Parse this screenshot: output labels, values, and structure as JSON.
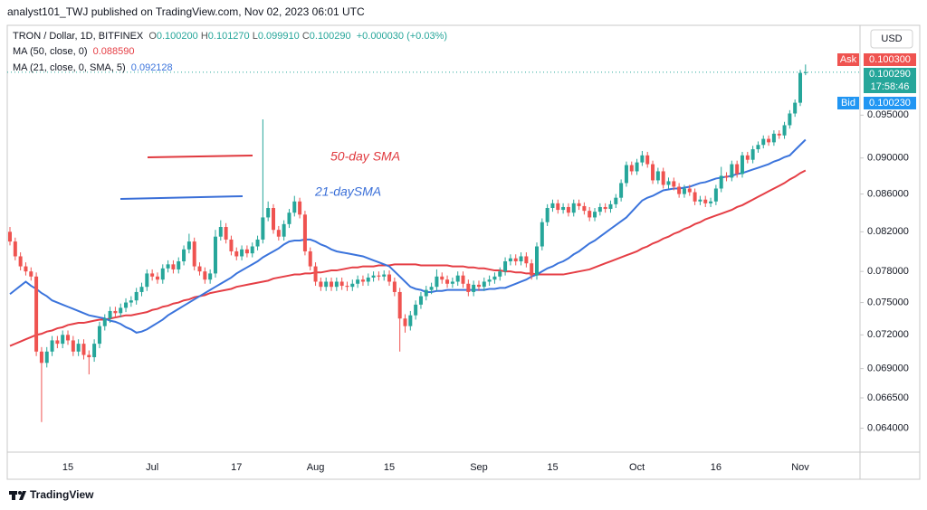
{
  "header": "analyst101_TWJ published on TradingView.com, Nov 02, 2023 06:01 UTC",
  "footer": "TradingView",
  "currency": "USD",
  "price_scale": {
    "ask_label": "Ask",
    "ask": "0.100300",
    "last": "0.100290",
    "countdown": "17:58:46",
    "bid_label": "Bid",
    "bid": "0.100230"
  },
  "chart_data": {
    "type": "candlestick",
    "title": "TRON / Dollar, 1D, BITFINEX",
    "ohlc_legend": [
      {
        "label": "O",
        "value": "0.100200"
      },
      {
        "label": "H",
        "value": "0.101270"
      },
      {
        "label": "L",
        "value": "0.099910"
      },
      {
        "label": "C",
        "value": "0.100290"
      }
    ],
    "change": "+0.000030 (+0.03%)",
    "up_color": "#26a69a",
    "down_color": "#ef5350",
    "log": true,
    "grid": false,
    "ylim": [
      0.0621,
      0.1064
    ],
    "yticks": [
      {
        "value": 0.064,
        "label": "0.064000"
      },
      {
        "value": 0.0665,
        "label": "0.066500"
      },
      {
        "value": 0.069,
        "label": "0.069000"
      },
      {
        "value": 0.072,
        "label": "0.072000"
      },
      {
        "value": 0.075,
        "label": "0.075000"
      },
      {
        "value": 0.078,
        "label": "0.078000"
      },
      {
        "value": 0.082,
        "label": "0.082000"
      },
      {
        "value": 0.086,
        "label": "0.086000"
      },
      {
        "value": 0.09,
        "label": "0.090000"
      },
      {
        "value": 0.095,
        "label": "0.095000"
      }
    ],
    "annotations": [
      {
        "text": "50-day SMA",
        "color": "#e0393e"
      },
      {
        "text": "21-daySMA",
        "color": "#3a6fd8"
      }
    ],
    "categories": [
      null,
      null,
      null,
      null,
      null,
      null,
      null,
      null,
      null,
      null,
      null,
      "15",
      null,
      null,
      null,
      null,
      null,
      null,
      null,
      null,
      null,
      null,
      null,
      null,
      null,
      null,
      null,
      "Jul",
      null,
      null,
      null,
      null,
      null,
      null,
      null,
      null,
      null,
      null,
      null,
      null,
      null,
      null,
      null,
      "17",
      null,
      null,
      null,
      null,
      null,
      null,
      null,
      null,
      null,
      null,
      null,
      null,
      null,
      null,
      "Aug",
      null,
      null,
      null,
      null,
      null,
      null,
      null,
      null,
      null,
      null,
      null,
      null,
      null,
      "15",
      null,
      null,
      null,
      null,
      null,
      null,
      null,
      null,
      null,
      null,
      null,
      null,
      null,
      null,
      null,
      null,
      "Sep",
      null,
      null,
      null,
      null,
      null,
      null,
      null,
      null,
      null,
      null,
      null,
      null,
      null,
      "15",
      null,
      null,
      null,
      null,
      null,
      null,
      null,
      null,
      null,
      null,
      null,
      null,
      null,
      null,
      null,
      "Oct",
      null,
      null,
      null,
      null,
      null,
      null,
      null,
      null,
      null,
      null,
      null,
      null,
      null,
      null,
      "16",
      null,
      null,
      null,
      null,
      null,
      null,
      null,
      null,
      null,
      null,
      null,
      null,
      null,
      null,
      null,
      "Nov",
      null
    ],
    "open": [
      0.082,
      0.081,
      0.0795,
      0.0785,
      0.078,
      0.0775,
      0.0705,
      0.0695,
      0.0705,
      0.0715,
      0.0712,
      0.072,
      0.0715,
      0.0705,
      0.0712,
      0.0702,
      0.07,
      0.0712,
      0.0728,
      0.0735,
      0.0742,
      0.074,
      0.0745,
      0.075,
      0.0752,
      0.076,
      0.0765,
      0.0778,
      0.0775,
      0.0772,
      0.0783,
      0.0787,
      0.0782,
      0.079,
      0.0802,
      0.081,
      0.0785,
      0.078,
      0.0772,
      0.0778,
      0.0815,
      0.0825,
      0.0812,
      0.08,
      0.0795,
      0.0802,
      0.0798,
      0.0805,
      0.0812,
      0.0835,
      0.0845,
      0.0822,
      0.0815,
      0.0828,
      0.084,
      0.0852,
      0.0838,
      0.08,
      0.0785,
      0.077,
      0.0765,
      0.077,
      0.0765,
      0.077,
      0.0766,
      0.0765,
      0.0768,
      0.0772,
      0.077,
      0.0774,
      0.0776,
      0.0775,
      0.0777,
      0.077,
      0.076,
      0.0735,
      0.0728,
      0.0738,
      0.0748,
      0.0756,
      0.0762,
      0.0765,
      0.0775,
      0.0772,
      0.0768,
      0.077,
      0.0776,
      0.0768,
      0.076,
      0.0767,
      0.0765,
      0.077,
      0.0772,
      0.0775,
      0.078,
      0.079,
      0.0793,
      0.079,
      0.0795,
      0.0788,
      0.0776,
      0.0805,
      0.083,
      0.0845,
      0.085,
      0.0843,
      0.0846,
      0.084,
      0.085,
      0.0847,
      0.0842,
      0.0835,
      0.0841,
      0.0846,
      0.0844,
      0.0849,
      0.0856,
      0.0872,
      0.0892,
      0.0885,
      0.0895,
      0.0903,
      0.0893,
      0.0875,
      0.0885,
      0.087,
      0.0874,
      0.0868,
      0.086,
      0.0866,
      0.0862,
      0.0852,
      0.0854,
      0.085,
      0.0852,
      0.0866,
      0.088,
      0.0878,
      0.0893,
      0.0882,
      0.0903,
      0.0898,
      0.091,
      0.0915,
      0.0922,
      0.0918,
      0.0928,
      0.0926,
      0.0938,
      0.0952,
      0.0965,
      0.1002
    ],
    "high": [
      0.0825,
      0.0814,
      0.0799,
      0.0789,
      0.0784,
      0.0779,
      0.0709,
      0.0709,
      0.0719,
      0.0719,
      0.0724,
      0.0724,
      0.0719,
      0.0716,
      0.0716,
      0.0706,
      0.0716,
      0.0732,
      0.0739,
      0.0746,
      0.0746,
      0.0749,
      0.0754,
      0.0756,
      0.0764,
      0.0769,
      0.0782,
      0.0782,
      0.0779,
      0.0787,
      0.0791,
      0.0791,
      0.0794,
      0.0806,
      0.0818,
      0.0814,
      0.0789,
      0.0784,
      0.0782,
      0.0822,
      0.0832,
      0.0829,
      0.0816,
      0.0804,
      0.0806,
      0.0806,
      0.0809,
      0.0816,
      0.0945,
      0.0852,
      0.0849,
      0.0826,
      0.0832,
      0.0844,
      0.0858,
      0.0856,
      0.0842,
      0.0804,
      0.0789,
      0.0774,
      0.0774,
      0.0774,
      0.0774,
      0.0774,
      0.077,
      0.0772,
      0.0776,
      0.0776,
      0.0778,
      0.078,
      0.078,
      0.0781,
      0.0781,
      0.0774,
      0.0764,
      0.0739,
      0.0742,
      0.0752,
      0.076,
      0.0766,
      0.0769,
      0.0782,
      0.0779,
      0.0776,
      0.0774,
      0.078,
      0.078,
      0.0772,
      0.0771,
      0.0771,
      0.0774,
      0.0776,
      0.0779,
      0.0784,
      0.0794,
      0.0797,
      0.0797,
      0.0799,
      0.0799,
      0.0792,
      0.0809,
      0.0834,
      0.0849,
      0.0854,
      0.0854,
      0.085,
      0.085,
      0.0854,
      0.0854,
      0.0851,
      0.0846,
      0.0845,
      0.085,
      0.085,
      0.0853,
      0.086,
      0.0876,
      0.0896,
      0.0896,
      0.0899,
      0.0908,
      0.0907,
      0.0897,
      0.0889,
      0.0889,
      0.0878,
      0.0878,
      0.0872,
      0.087,
      0.087,
      0.0866,
      0.0858,
      0.0858,
      0.0856,
      0.087,
      0.089,
      0.0884,
      0.0897,
      0.0897,
      0.0907,
      0.0907,
      0.0914,
      0.0919,
      0.0926,
      0.0926,
      0.0932,
      0.0932,
      0.0942,
      0.0956,
      0.0969,
      0.1006,
      0.10127
    ],
    "low": [
      0.0806,
      0.0791,
      0.0781,
      0.0776,
      0.0771,
      0.0701,
      0.0645,
      0.0691,
      0.0701,
      0.0708,
      0.0708,
      0.0711,
      0.0701,
      0.0701,
      0.0698,
      0.0685,
      0.0696,
      0.0708,
      0.0724,
      0.0731,
      0.0736,
      0.0736,
      0.0741,
      0.0746,
      0.0748,
      0.0756,
      0.0761,
      0.0771,
      0.0768,
      0.0768,
      0.0779,
      0.0778,
      0.0778,
      0.0786,
      0.0798,
      0.0781,
      0.0776,
      0.0768,
      0.0768,
      0.0774,
      0.0811,
      0.0808,
      0.0796,
      0.0791,
      0.0791,
      0.0794,
      0.0794,
      0.0801,
      0.0808,
      0.0831,
      0.0818,
      0.0811,
      0.0811,
      0.0824,
      0.0836,
      0.0834,
      0.0796,
      0.0781,
      0.0766,
      0.0761,
      0.0761,
      0.0761,
      0.0761,
      0.0762,
      0.0761,
      0.0761,
      0.0764,
      0.0766,
      0.0766,
      0.077,
      0.0771,
      0.0771,
      0.0766,
      0.0756,
      0.0705,
      0.0722,
      0.0724,
      0.0734,
      0.0744,
      0.0752,
      0.0758,
      0.0761,
      0.0768,
      0.0764,
      0.0764,
      0.0766,
      0.0764,
      0.0756,
      0.0756,
      0.0761,
      0.0761,
      0.0766,
      0.0768,
      0.0771,
      0.0776,
      0.0786,
      0.0786,
      0.0786,
      0.0784,
      0.0772,
      0.0772,
      0.0801,
      0.0826,
      0.0841,
      0.0839,
      0.0839,
      0.0836,
      0.0836,
      0.0843,
      0.0838,
      0.0831,
      0.0831,
      0.0837,
      0.084,
      0.084,
      0.0845,
      0.0852,
      0.0868,
      0.0881,
      0.0881,
      0.0891,
      0.0889,
      0.0871,
      0.0871,
      0.0866,
      0.0866,
      0.0864,
      0.0856,
      0.0856,
      0.0858,
      0.0848,
      0.0848,
      0.0846,
      0.0846,
      0.0848,
      0.0862,
      0.0874,
      0.0874,
      0.0878,
      0.0878,
      0.0894,
      0.0894,
      0.0906,
      0.0911,
      0.0914,
      0.0914,
      0.0922,
      0.0922,
      0.0934,
      0.0948,
      0.0961,
      0.09991
    ],
    "close": [
      0.081,
      0.0795,
      0.0785,
      0.078,
      0.0775,
      0.0705,
      0.0695,
      0.0705,
      0.0715,
      0.0712,
      0.072,
      0.0715,
      0.0705,
      0.0712,
      0.0702,
      0.07,
      0.0712,
      0.0728,
      0.0735,
      0.0742,
      0.074,
      0.0745,
      0.075,
      0.0752,
      0.076,
      0.0765,
      0.0778,
      0.0775,
      0.0772,
      0.0783,
      0.0787,
      0.0782,
      0.079,
      0.0802,
      0.081,
      0.0785,
      0.078,
      0.0772,
      0.0778,
      0.0815,
      0.0825,
      0.0812,
      0.08,
      0.0795,
      0.0802,
      0.0798,
      0.0805,
      0.0812,
      0.0835,
      0.0845,
      0.0822,
      0.0815,
      0.0828,
      0.084,
      0.0852,
      0.0838,
      0.08,
      0.0785,
      0.077,
      0.0765,
      0.077,
      0.0765,
      0.077,
      0.0766,
      0.0765,
      0.0768,
      0.0772,
      0.077,
      0.0774,
      0.0776,
      0.0775,
      0.0777,
      0.077,
      0.076,
      0.0735,
      0.0728,
      0.0738,
      0.0748,
      0.0756,
      0.0762,
      0.0765,
      0.0775,
      0.0772,
      0.0768,
      0.077,
      0.0776,
      0.0768,
      0.076,
      0.0767,
      0.0765,
      0.077,
      0.0772,
      0.0775,
      0.078,
      0.079,
      0.0793,
      0.079,
      0.0795,
      0.0788,
      0.0776,
      0.0805,
      0.083,
      0.0845,
      0.085,
      0.0843,
      0.0846,
      0.084,
      0.085,
      0.0847,
      0.0842,
      0.0835,
      0.0841,
      0.0846,
      0.0844,
      0.0849,
      0.0856,
      0.0872,
      0.0892,
      0.0885,
      0.0895,
      0.0903,
      0.0893,
      0.0875,
      0.0885,
      0.087,
      0.0874,
      0.0868,
      0.086,
      0.0866,
      0.0862,
      0.0852,
      0.0854,
      0.085,
      0.0852,
      0.0866,
      0.088,
      0.0878,
      0.0893,
      0.0882,
      0.0903,
      0.0898,
      0.091,
      0.0915,
      0.0922,
      0.0918,
      0.0928,
      0.0926,
      0.0938,
      0.0952,
      0.0965,
      0.1002,
      0.10029
    ],
    "series": [
      {
        "name": "MA (50, close, 0)",
        "legend_value": "0.088590",
        "color": "#e53e45",
        "values": [
          0.071,
          0.0712,
          0.0714,
          0.0716,
          0.0718,
          0.072,
          0.0721,
          0.0723,
          0.0724,
          0.0726,
          0.0727,
          0.0729,
          0.073,
          0.0731,
          0.0731,
          0.0732,
          0.0733,
          0.0734,
          0.0734,
          0.0735,
          0.0736,
          0.0737,
          0.0738,
          0.0738,
          0.0739,
          0.074,
          0.0741,
          0.0743,
          0.0744,
          0.0746,
          0.0747,
          0.0749,
          0.075,
          0.0752,
          0.0753,
          0.0755,
          0.0756,
          0.0757,
          0.0759,
          0.076,
          0.0761,
          0.0762,
          0.0763,
          0.0765,
          0.0766,
          0.0767,
          0.0768,
          0.0769,
          0.077,
          0.0771,
          0.0773,
          0.0774,
          0.0775,
          0.0776,
          0.0777,
          0.0777,
          0.0778,
          0.0778,
          0.0779,
          0.0779,
          0.078,
          0.0781,
          0.0781,
          0.0782,
          0.0783,
          0.0784,
          0.0784,
          0.0785,
          0.0785,
          0.0785,
          0.0786,
          0.0786,
          0.0786,
          0.0787,
          0.0787,
          0.0787,
          0.0787,
          0.0787,
          0.0786,
          0.0786,
          0.0786,
          0.0786,
          0.0786,
          0.0786,
          0.0785,
          0.0785,
          0.0785,
          0.0784,
          0.0784,
          0.0783,
          0.0783,
          0.0782,
          0.0781,
          0.0781,
          0.078,
          0.078,
          0.0779,
          0.0779,
          0.0778,
          0.0778,
          0.0777,
          0.0777,
          0.0777,
          0.0777,
          0.0777,
          0.0777,
          0.0778,
          0.0779,
          0.078,
          0.0781,
          0.0782,
          0.0784,
          0.0786,
          0.0788,
          0.079,
          0.0792,
          0.0794,
          0.0796,
          0.0798,
          0.08,
          0.0803,
          0.0805,
          0.0808,
          0.081,
          0.0813,
          0.0815,
          0.0818,
          0.082,
          0.0823,
          0.0825,
          0.0828,
          0.083,
          0.0833,
          0.0835,
          0.0837,
          0.0839,
          0.0841,
          0.0843,
          0.0846,
          0.0848,
          0.0851,
          0.0854,
          0.0857,
          0.086,
          0.0863,
          0.0866,
          0.0869,
          0.0872,
          0.0876,
          0.0879,
          0.0883,
          0.0886
        ]
      },
      {
        "name": "MA (21, close, 0, SMA, 5)",
        "legend_value": "0.092128",
        "color": "#3b74dc",
        "values": [
          0.0758,
          0.0762,
          0.0766,
          0.077,
          0.0766,
          0.0763,
          0.0759,
          0.0756,
          0.0752,
          0.075,
          0.0748,
          0.0746,
          0.0744,
          0.0742,
          0.074,
          0.0738,
          0.0737,
          0.0736,
          0.0735,
          0.0733,
          0.0732,
          0.073,
          0.0727,
          0.0725,
          0.0722,
          0.0723,
          0.0725,
          0.0728,
          0.0731,
          0.0734,
          0.0738,
          0.0741,
          0.0744,
          0.0747,
          0.075,
          0.0753,
          0.0756,
          0.0759,
          0.0762,
          0.0765,
          0.0768,
          0.0771,
          0.0774,
          0.0778,
          0.0781,
          0.0784,
          0.0787,
          0.079,
          0.0794,
          0.0797,
          0.08,
          0.0803,
          0.0807,
          0.081,
          0.0811,
          0.0811,
          0.0812,
          0.0812,
          0.081,
          0.0807,
          0.0805,
          0.0802,
          0.08,
          0.0799,
          0.0798,
          0.0797,
          0.0796,
          0.0795,
          0.0793,
          0.0791,
          0.0789,
          0.0787,
          0.0785,
          0.078,
          0.0775,
          0.077,
          0.0765,
          0.0763,
          0.0762,
          0.076,
          0.076,
          0.0761,
          0.0761,
          0.0762,
          0.0762,
          0.0762,
          0.0762,
          0.0762,
          0.0762,
          0.0762,
          0.0762,
          0.0763,
          0.0763,
          0.0764,
          0.0764,
          0.0766,
          0.0768,
          0.077,
          0.0772,
          0.0775,
          0.0777,
          0.078,
          0.0783,
          0.0785,
          0.0788,
          0.079,
          0.0793,
          0.0797,
          0.08,
          0.0804,
          0.0808,
          0.0811,
          0.0815,
          0.0819,
          0.0823,
          0.0827,
          0.0831,
          0.0835,
          0.0841,
          0.0847,
          0.0853,
          0.0856,
          0.0858,
          0.0861,
          0.0864,
          0.0865,
          0.0866,
          0.0866,
          0.0867,
          0.0868,
          0.087,
          0.0872,
          0.0873,
          0.0875,
          0.0877,
          0.0878,
          0.0879,
          0.088,
          0.0882,
          0.0883,
          0.0885,
          0.0887,
          0.0889,
          0.0891,
          0.0893,
          0.0896,
          0.0898,
          0.0901,
          0.0903,
          0.0909,
          0.0915,
          0.0921
        ]
      }
    ]
  }
}
